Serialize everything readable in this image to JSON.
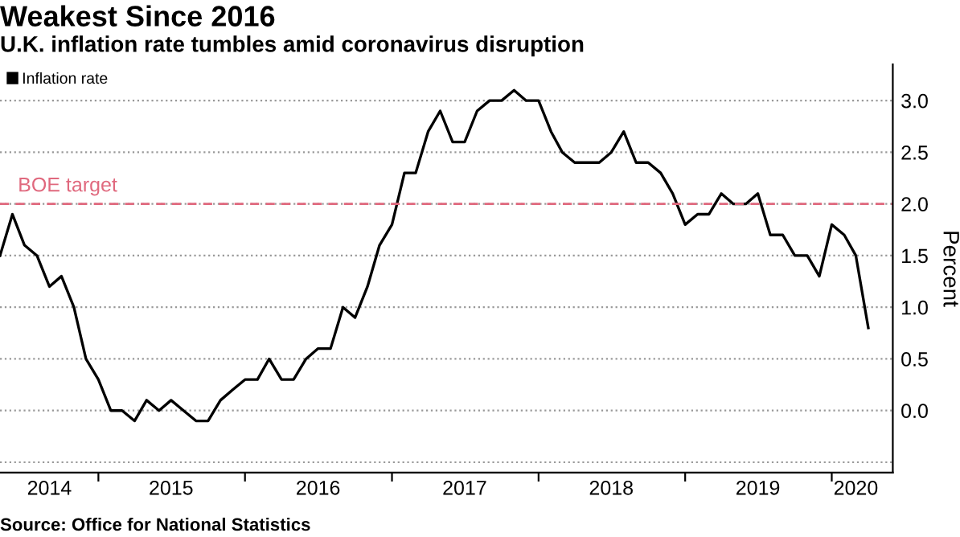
{
  "chart_data": {
    "type": "line",
    "title": "Weakest Since 2016",
    "subtitle": "U.K. inflation rate tumbles amid coronavirus disruption",
    "ylabel": "Percent",
    "annotations": [
      "Source: Office for National Statistics"
    ],
    "x": [
      "2014-05",
      "2014-06",
      "2014-07",
      "2014-08",
      "2014-09",
      "2014-10",
      "2014-11",
      "2014-12",
      "2015-01",
      "2015-02",
      "2015-03",
      "2015-04",
      "2015-05",
      "2015-06",
      "2015-07",
      "2015-08",
      "2015-09",
      "2015-10",
      "2015-11",
      "2015-12",
      "2016-01",
      "2016-02",
      "2016-03",
      "2016-04",
      "2016-05",
      "2016-06",
      "2016-07",
      "2016-08",
      "2016-09",
      "2016-10",
      "2016-11",
      "2016-12",
      "2017-01",
      "2017-02",
      "2017-03",
      "2017-04",
      "2017-05",
      "2017-06",
      "2017-07",
      "2017-08",
      "2017-09",
      "2017-10",
      "2017-11",
      "2017-12",
      "2018-01",
      "2018-02",
      "2018-03",
      "2018-04",
      "2018-05",
      "2018-06",
      "2018-07",
      "2018-08",
      "2018-09",
      "2018-10",
      "2018-11",
      "2018-12",
      "2019-01",
      "2019-02",
      "2019-03",
      "2019-04",
      "2019-05",
      "2019-06",
      "2019-07",
      "2019-08",
      "2019-09",
      "2019-10",
      "2019-11",
      "2019-12",
      "2020-01",
      "2020-02",
      "2020-03",
      "2020-04"
    ],
    "series": [
      {
        "name": "Inflation rate",
        "color": "#000000",
        "values": [
          1.5,
          1.9,
          1.6,
          1.5,
          1.2,
          1.3,
          1.0,
          0.5,
          0.3,
          0.0,
          0.0,
          -0.1,
          0.1,
          0.0,
          0.1,
          0.0,
          -0.1,
          -0.1,
          0.1,
          0.2,
          0.3,
          0.3,
          0.5,
          0.3,
          0.3,
          0.5,
          0.6,
          0.6,
          1.0,
          0.9,
          1.2,
          1.6,
          1.8,
          2.3,
          2.3,
          2.7,
          2.9,
          2.6,
          2.6,
          2.9,
          3.0,
          3.0,
          3.1,
          3.0,
          3.0,
          2.7,
          2.5,
          2.4,
          2.4,
          2.4,
          2.5,
          2.7,
          2.4,
          2.4,
          2.3,
          2.1,
          1.8,
          1.9,
          1.9,
          2.1,
          2.0,
          2.0,
          2.1,
          1.7,
          1.7,
          1.5,
          1.5,
          1.3,
          1.8,
          1.7,
          1.5,
          0.8
        ]
      }
    ],
    "xlim": [
      "2014-05-01",
      "2020-06-01"
    ],
    "xticks": [
      {
        "value": "2014-09-01",
        "label": "2014"
      },
      {
        "value": "2015-01-01",
        "label": null
      },
      {
        "value": "2015-07-01",
        "label": "2015"
      },
      {
        "value": "2016-01-01",
        "label": null
      },
      {
        "value": "2016-07-01",
        "label": "2016"
      },
      {
        "value": "2017-01-01",
        "label": null
      },
      {
        "value": "2017-07-01",
        "label": "2017"
      },
      {
        "value": "2018-01-01",
        "label": null
      },
      {
        "value": "2018-07-01",
        "label": "2018"
      },
      {
        "value": "2019-01-01",
        "label": null
      },
      {
        "value": "2019-07-01",
        "label": "2019"
      },
      {
        "value": "2020-01-01",
        "label": null
      },
      {
        "value": "2020-03-01",
        "label": "2020"
      }
    ],
    "ylim": [
      -0.6,
      3.35
    ],
    "yticks": [
      {
        "value": -0.5,
        "label": null
      },
      {
        "value": 0.0,
        "label": "0.0"
      },
      {
        "value": 0.5,
        "label": "0.5"
      },
      {
        "value": 1.0,
        "label": "1.0"
      },
      {
        "value": 1.5,
        "label": "1.5"
      },
      {
        "value": 2.0,
        "label": "2.0"
      },
      {
        "value": 2.5,
        "label": "2.5"
      },
      {
        "value": 3.0,
        "label": "3.0"
      }
    ],
    "ref_lines": [
      {
        "axis": "y",
        "value": 2.0,
        "label": "BOE target",
        "color": "#e0697e",
        "line_style": "dashed"
      }
    ],
    "grid": "y",
    "legend": "top left",
    "marker": "none",
    "line_style": "solid"
  }
}
